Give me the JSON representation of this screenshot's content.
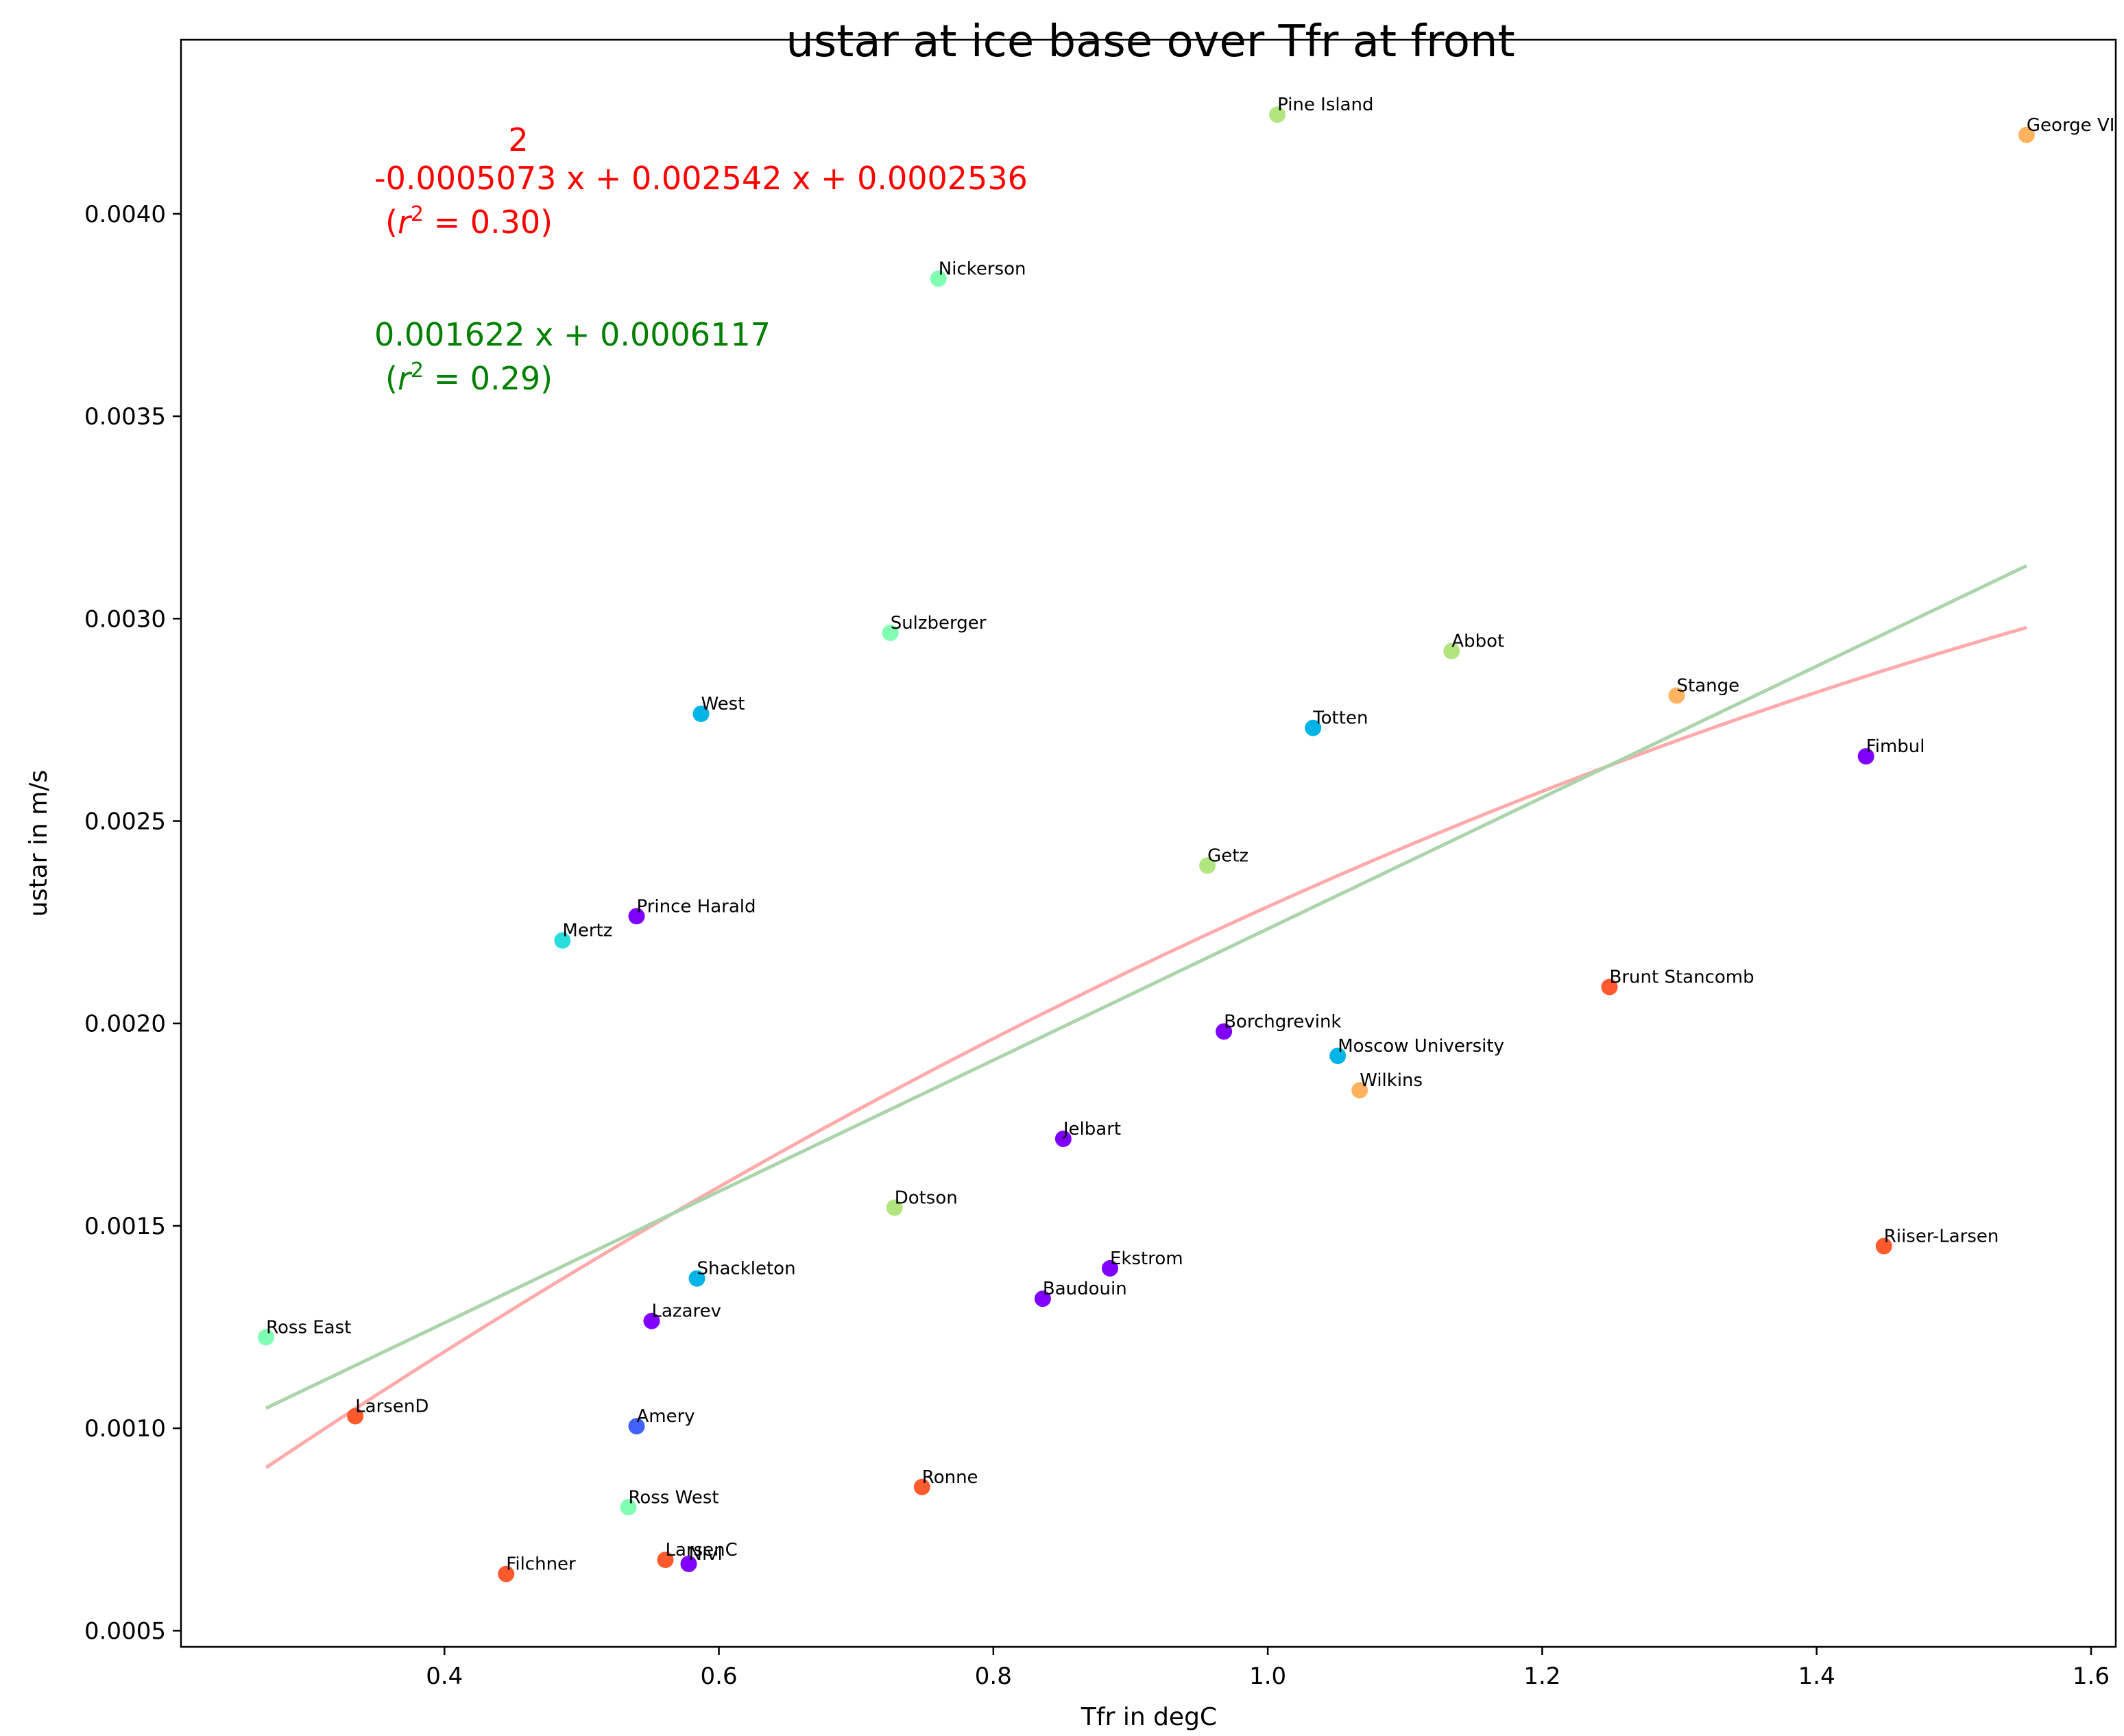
{
  "chart_data": {
    "type": "scatter",
    "title": "ustar at ice base over Tfr at front",
    "xlabel": "Tfr in degC",
    "ylabel": "ustar in m/s",
    "xlim": [
      0.208,
      1.618
    ],
    "ylim": [
      0.00046,
      0.00443
    ],
    "xticks": [
      "0.4",
      "0.6",
      "0.8",
      "1.0",
      "1.2",
      "1.4",
      "1.6"
    ],
    "yticks": [
      "0.0005",
      "0.0010",
      "0.0015",
      "0.0020",
      "0.0025",
      "0.0030",
      "0.0035",
      "0.0040"
    ],
    "grid": false,
    "points": [
      {
        "label": "Pine Island",
        "x": 1.007,
        "y": 0.004245,
        "color": "#b2e480"
      },
      {
        "label": "George VI",
        "x": 1.553,
        "y": 0.004195,
        "color": "#ffb360"
      },
      {
        "label": "Nickerson",
        "x": 0.76,
        "y": 0.00384,
        "color": "#80ffb3"
      },
      {
        "label": "Sulzberger",
        "x": 0.725,
        "y": 0.002965,
        "color": "#80ffb3"
      },
      {
        "label": "Abbot",
        "x": 1.134,
        "y": 0.00292,
        "color": "#b2e480"
      },
      {
        "label": "Stange",
        "x": 1.298,
        "y": 0.00281,
        "color": "#ffb360"
      },
      {
        "label": "West",
        "x": 0.587,
        "y": 0.002765,
        "color": "#00b4e7"
      },
      {
        "label": "Totten",
        "x": 1.033,
        "y": 0.00273,
        "color": "#00b4e7"
      },
      {
        "label": "Fimbul",
        "x": 1.436,
        "y": 0.00266,
        "color": "#8000ff"
      },
      {
        "label": "Getz",
        "x": 0.956,
        "y": 0.00239,
        "color": "#b2e480"
      },
      {
        "label": "Prince Harald",
        "x": 0.54,
        "y": 0.002265,
        "color": "#8000ff"
      },
      {
        "label": "Mertz",
        "x": 0.486,
        "y": 0.002205,
        "color": "#2adddd"
      },
      {
        "label": "Brunt Stancomb",
        "x": 1.249,
        "y": 0.00209,
        "color": "#ff5a2d"
      },
      {
        "label": "Borchgrevink",
        "x": 0.968,
        "y": 0.00198,
        "color": "#8000ff"
      },
      {
        "label": "Moscow University",
        "x": 1.051,
        "y": 0.00192,
        "color": "#00b4e7"
      },
      {
        "label": "Wilkins",
        "x": 1.067,
        "y": 0.001835,
        "color": "#ffb360"
      },
      {
        "label": "Jelbart",
        "x": 0.851,
        "y": 0.001715,
        "color": "#8000ff"
      },
      {
        "label": "Dotson",
        "x": 0.728,
        "y": 0.001545,
        "color": "#b2e480"
      },
      {
        "label": "Riiser-Larsen",
        "x": 1.449,
        "y": 0.00145,
        "color": "#ff5a2d"
      },
      {
        "label": "Ekstrom",
        "x": 0.885,
        "y": 0.001395,
        "color": "#8000ff"
      },
      {
        "label": "Shackleton",
        "x": 0.584,
        "y": 0.00137,
        "color": "#00b4e7"
      },
      {
        "label": "Baudouin",
        "x": 0.836,
        "y": 0.00132,
        "color": "#8000ff"
      },
      {
        "label": "Lazarev",
        "x": 0.551,
        "y": 0.001265,
        "color": "#8000ff"
      },
      {
        "label": "Ross East",
        "x": 0.27,
        "y": 0.001225,
        "color": "#80ffb3"
      },
      {
        "label": "LarsenD",
        "x": 0.335,
        "y": 0.00103,
        "color": "#ff5a2d"
      },
      {
        "label": "Amery",
        "x": 0.54,
        "y": 0.001005,
        "color": "#4062fa"
      },
      {
        "label": "Ronne",
        "x": 0.748,
        "y": 0.000855,
        "color": "#ff5a2d"
      },
      {
        "label": "Ross West",
        "x": 0.534,
        "y": 0.000805,
        "color": "#80ffb3"
      },
      {
        "label": "LarsenC",
        "x": 0.561,
        "y": 0.000675,
        "color": "#ff5a2d"
      },
      {
        "label": "Nivl",
        "x": 0.578,
        "y": 0.000665,
        "color": "#8000ff"
      },
      {
        "label": "Filchner",
        "x": 0.445,
        "y": 0.00064,
        "color": "#ff5a2d"
      }
    ],
    "fits": [
      {
        "kind": "quadratic",
        "coefficients": [
          -0.0005073,
          0.002542,
          0.0002536
        ],
        "color": "#ffaaaa",
        "xrange": [
          0.27,
          1.553
        ]
      },
      {
        "kind": "linear",
        "coefficients": [
          0.001622,
          0.0006117
        ],
        "color": "#aad4aa",
        "xrange": [
          0.27,
          1.553
        ]
      }
    ],
    "annotations": {
      "quadratic_exponent": "2",
      "quadratic_equation": "-0.0005073 x + 0.002542 x + 0.0002536",
      "quadratic_r2_open": "(",
      "r2_symbol": "r",
      "r2_power": "2",
      "quadratic_r2_close": " = 0.30)",
      "linear_equation": "0.001622 x + 0.0006117",
      "linear_r2_open": "(",
      "linear_r2_close": " = 0.29)",
      "red_color": "#ff0000",
      "green_color": "#008000"
    }
  }
}
